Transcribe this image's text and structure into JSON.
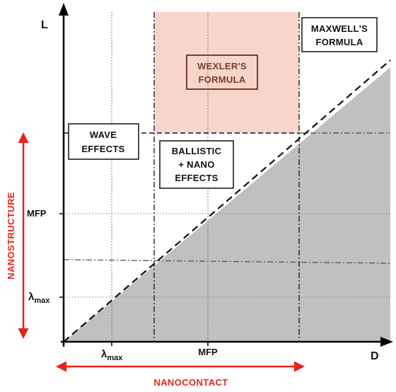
{
  "axes": {
    "y_label": "L",
    "x_label": "D",
    "y_ticks": [
      {
        "main": "MFP",
        "sub": ""
      },
      {
        "main": "λ",
        "sub": "max"
      }
    ],
    "x_ticks": [
      {
        "main": "λ",
        "sub": "max"
      },
      {
        "main": "MFP",
        "sub": ""
      }
    ]
  },
  "regions": {
    "wexler": {
      "lines": [
        "WEXLER'S",
        "FORMULA"
      ]
    },
    "maxwell": {
      "lines": [
        "MAXWELL'S",
        "FORMULA"
      ]
    },
    "wave": {
      "lines": [
        "WAVE",
        "EFFECTS"
      ]
    },
    "ballistic": {
      "lines": [
        "BALLISTIC",
        "+ NANO",
        "EFFECTS"
      ]
    }
  },
  "ranges": {
    "nanostructure": "NANOSTRUCTURE",
    "nanocontact": "NANOCONTACT"
  },
  "colors": {
    "axis": "#000000",
    "wexler_fill": "#f8d5cb",
    "shaded_region": "#c0c0c0",
    "range_arrow": "#e8231a",
    "grid_dotted_a": "#6b6b6b",
    "grid_dotted_b": "#8a8a3a"
  }
}
